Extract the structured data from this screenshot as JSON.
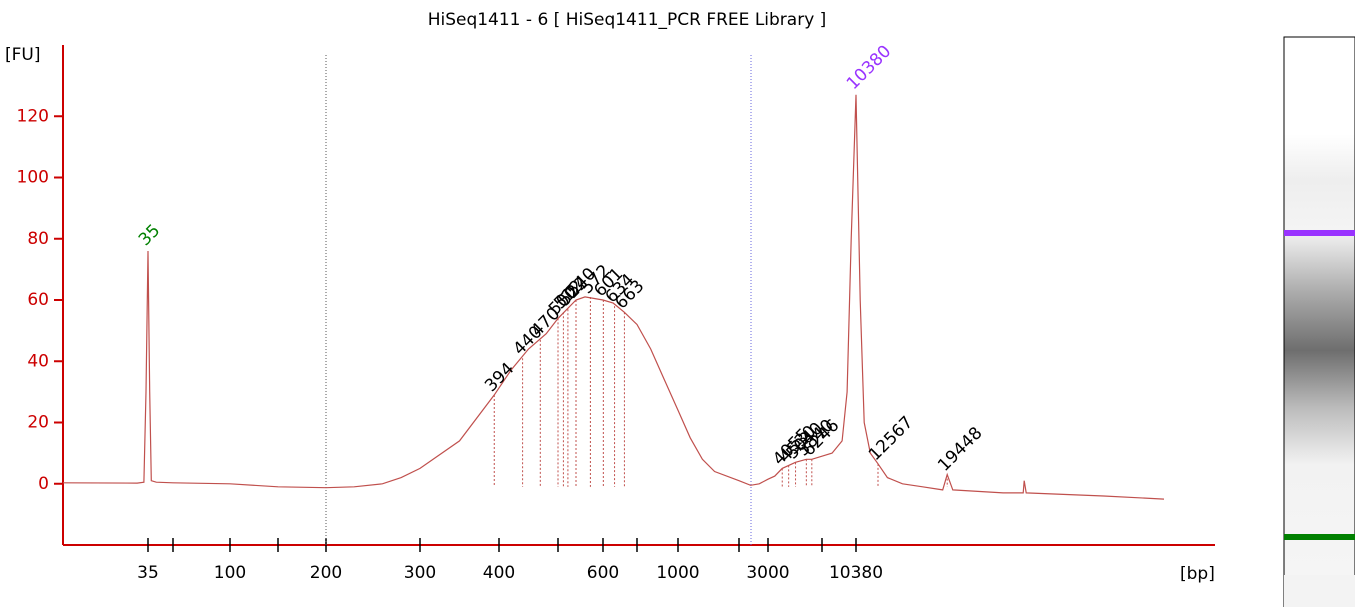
{
  "chart_data": {
    "type": "line",
    "title": "HiSeq1411 - 6  [ HiSeq1411_PCR FREE Library ]",
    "y_label": "[FU]",
    "x_label": "[bp]",
    "ylim": [
      -20,
      140
    ],
    "yticks": [
      0,
      20,
      40,
      60,
      80,
      100,
      120
    ],
    "xticks": [
      35,
      {
        "value": 50,
        "label": null
      },
      100,
      {
        "value": 150,
        "label": null
      },
      200,
      300,
      400,
      {
        "value": 500,
        "label": null
      },
      600,
      {
        "value": 700,
        "label": null
      },
      1000,
      {
        "value": 2000,
        "label": null
      },
      3000,
      {
        "value": 7000,
        "label": null
      },
      10380
    ],
    "axis_color": "#cc0000",
    "region": {
      "bp": [
        200,
        2414
      ],
      "colors": [
        "#555555",
        "#6666dd"
      ]
    },
    "series": [
      {
        "color": "#c0504d",
        "x": [
          10.4,
          30,
          33,
          34,
          35,
          36,
          37,
          40,
          50,
          100,
          150,
          200,
          230,
          260,
          280,
          300,
          350,
          394,
          420,
          450,
          480,
          500,
          540,
          560,
          600,
          630,
          663,
          700,
          800,
          900,
          1000,
          1200,
          1400,
          1600,
          2000,
          2400,
          2700,
          3000,
          3500,
          4055,
          4530,
          5040,
          5840,
          6246,
          7000,
          8000,
          9000,
          9500,
          9900,
          10380,
          10800,
          11200,
          11800,
          12567,
          13500,
          15000,
          17000,
          19000,
          19448,
          20000,
          25000,
          27000,
          27100,
          27300,
          35000,
          41000
        ],
        "values": [
          0.3,
          0.2,
          0.5,
          30,
          76,
          30,
          1,
          0.5,
          0.3,
          0,
          -1,
          -1.3,
          -1,
          0,
          2,
          5,
          14,
          29,
          37,
          44,
          49,
          54,
          60,
          61,
          60,
          59,
          56,
          52,
          44,
          34,
          24,
          15,
          8,
          4,
          1,
          -0.5,
          0,
          1.5,
          2.5,
          5,
          6,
          7,
          8,
          8,
          9,
          10,
          14,
          30,
          80,
          127,
          60,
          20,
          10,
          6.5,
          2,
          0,
          -1,
          -2,
          3,
          -2,
          -3,
          -3,
          1,
          -3,
          -4,
          -5
        ]
      }
    ],
    "markers": {
      "bp": [
        35,
        10380
      ],
      "fu": [
        76,
        127
      ],
      "colors": [
        "#008000",
        "#9933ff"
      ]
    },
    "peaks": {
      "color": "#000000",
      "bp": [
        394,
        440,
        470,
        500,
        512,
        522,
        540,
        572,
        601,
        634,
        663,
        4055,
        4530,
        5040,
        5840,
        6246,
        12567,
        19448
      ],
      "fu": [
        29,
        41,
        47,
        54,
        56,
        57,
        60,
        61,
        60,
        58,
        56,
        5,
        6,
        7,
        8,
        8,
        6.5,
        3
      ]
    }
  }
}
